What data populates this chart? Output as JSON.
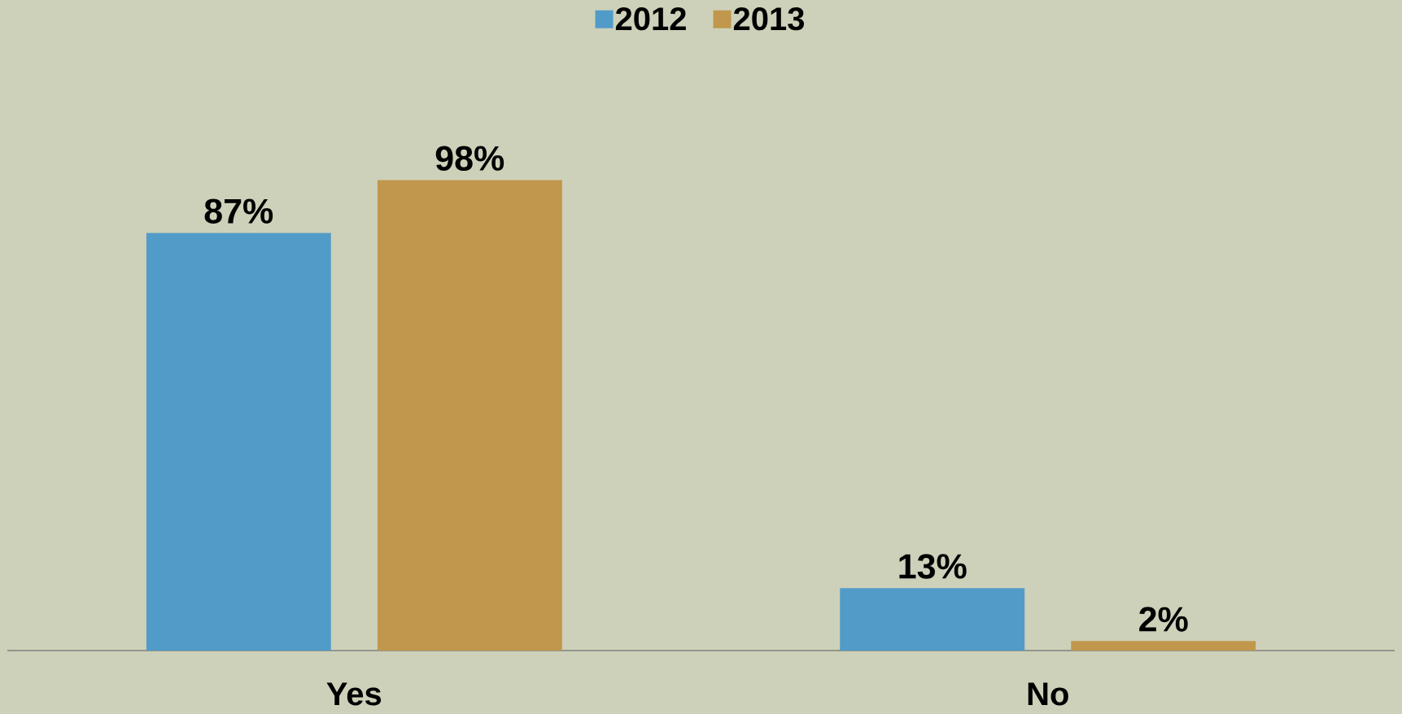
{
  "chart_data": {
    "type": "bar",
    "categories": [
      "Yes",
      "No"
    ],
    "series": [
      {
        "name": "2012",
        "color": "#519bc8",
        "values": [
          87,
          13
        ],
        "value_labels": [
          "87%",
          "13%"
        ]
      },
      {
        "name": "2013",
        "color": "#c0974c",
        "values": [
          98,
          2
        ],
        "value_labels": [
          "98%",
          "2%"
        ]
      }
    ],
    "legend": "top"
  }
}
